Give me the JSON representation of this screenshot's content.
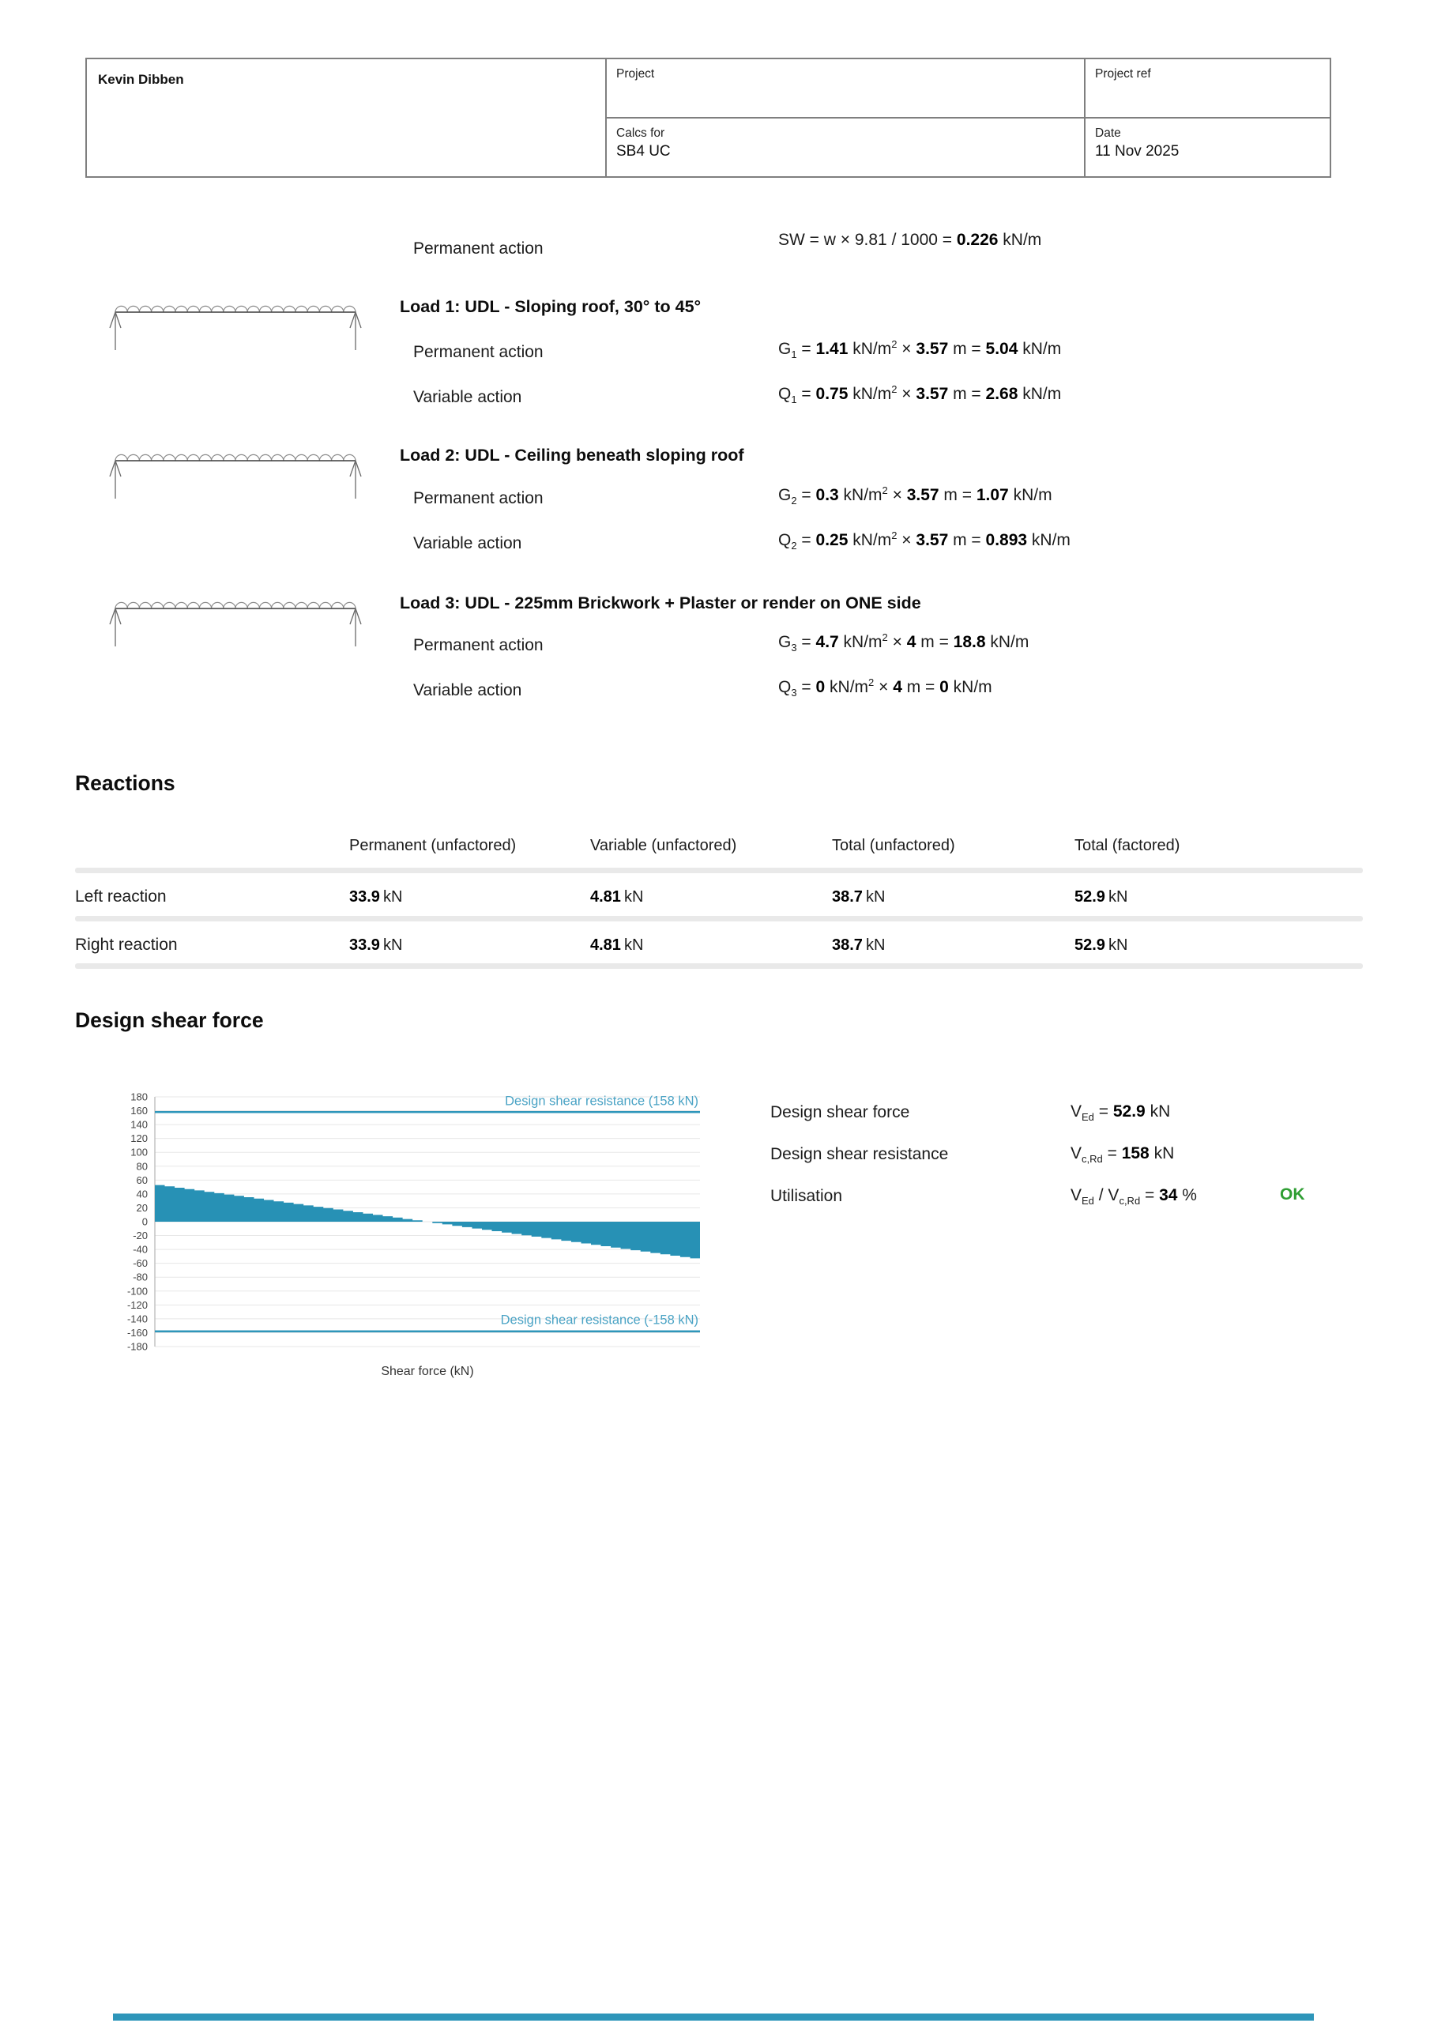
{
  "header": {
    "name": "Kevin Dibben",
    "project_label": "Project",
    "project_ref_label": "Project ref",
    "calcs_for_label": "Calcs for",
    "calcs_for_value": "SB4 UC",
    "date_label": "Date",
    "date_value": "11 Nov 2025"
  },
  "self_weight": {
    "label": "Permanent action",
    "formula": [
      {
        "t": "SW = w × 9.81 / 1000 = "
      },
      {
        "t": "0.226",
        "b": true
      },
      {
        "t": " kN/m"
      }
    ]
  },
  "loads": [
    {
      "title": "Load 1: UDL - Sloping roof, 30° to 45°",
      "diagram": "udl-beam-diagram",
      "permanent": {
        "label": "Permanent action",
        "formula": [
          {
            "t": "G"
          },
          {
            "t": "1",
            "s": "sub"
          },
          {
            "t": " = "
          },
          {
            "t": "1.41",
            "b": true
          },
          {
            "t": " kN/m"
          },
          {
            "t": "2",
            "s": "sup"
          },
          {
            "t": " × "
          },
          {
            "t": "3.57",
            "b": true
          },
          {
            "t": " m = "
          },
          {
            "t": "5.04",
            "b": true
          },
          {
            "t": " kN/m"
          }
        ]
      },
      "variable": {
        "label": "Variable action",
        "formula": [
          {
            "t": "Q"
          },
          {
            "t": "1",
            "s": "sub"
          },
          {
            "t": " = "
          },
          {
            "t": "0.75",
            "b": true
          },
          {
            "t": " kN/m"
          },
          {
            "t": "2",
            "s": "sup"
          },
          {
            "t": " × "
          },
          {
            "t": "3.57",
            "b": true
          },
          {
            "t": " m = "
          },
          {
            "t": "2.68",
            "b": true
          },
          {
            "t": " kN/m"
          }
        ]
      }
    },
    {
      "title": "Load 2: UDL - Ceiling beneath sloping roof",
      "diagram": "udl-beam-diagram",
      "permanent": {
        "label": "Permanent action",
        "formula": [
          {
            "t": "G"
          },
          {
            "t": "2",
            "s": "sub"
          },
          {
            "t": " = "
          },
          {
            "t": "0.3",
            "b": true
          },
          {
            "t": " kN/m"
          },
          {
            "t": "2",
            "s": "sup"
          },
          {
            "t": " × "
          },
          {
            "t": "3.57",
            "b": true
          },
          {
            "t": " m = "
          },
          {
            "t": "1.07",
            "b": true
          },
          {
            "t": " kN/m"
          }
        ]
      },
      "variable": {
        "label": "Variable action",
        "formula": [
          {
            "t": "Q"
          },
          {
            "t": "2",
            "s": "sub"
          },
          {
            "t": " = "
          },
          {
            "t": "0.25",
            "b": true
          },
          {
            "t": " kN/m"
          },
          {
            "t": "2",
            "s": "sup"
          },
          {
            "t": " × "
          },
          {
            "t": "3.57",
            "b": true
          },
          {
            "t": " m = "
          },
          {
            "t": "0.893",
            "b": true
          },
          {
            "t": " kN/m"
          }
        ]
      }
    },
    {
      "title": "Load 3: UDL - 225mm Brickwork + Plaster or render on ONE side",
      "diagram": "udl-beam-diagram",
      "permanent": {
        "label": "Permanent action",
        "formula": [
          {
            "t": "G"
          },
          {
            "t": "3",
            "s": "sub"
          },
          {
            "t": " = "
          },
          {
            "t": "4.7",
            "b": true
          },
          {
            "t": " kN/m"
          },
          {
            "t": "2",
            "s": "sup"
          },
          {
            "t": " × "
          },
          {
            "t": "4",
            "b": true
          },
          {
            "t": " m = "
          },
          {
            "t": "18.8",
            "b": true
          },
          {
            "t": " kN/m"
          }
        ]
      },
      "variable": {
        "label": "Variable action",
        "formula": [
          {
            "t": "Q"
          },
          {
            "t": "3",
            "s": "sub"
          },
          {
            "t": " = "
          },
          {
            "t": "0",
            "b": true
          },
          {
            "t": " kN/m"
          },
          {
            "t": "2",
            "s": "sup"
          },
          {
            "t": " × "
          },
          {
            "t": "4",
            "b": true
          },
          {
            "t": " m = "
          },
          {
            "t": "0",
            "b": true
          },
          {
            "t": " kN/m"
          }
        ]
      }
    }
  ],
  "reactions": {
    "heading": "Reactions",
    "columns": [
      "Permanent (unfactored)",
      "Variable (unfactored)",
      "Total (unfactored)",
      "Total (factored)"
    ],
    "rows": [
      {
        "label": "Left reaction",
        "values": [
          "33.9",
          "4.81",
          "38.7",
          "52.9"
        ],
        "unit": "kN"
      },
      {
        "label": "Right reaction",
        "values": [
          "33.9",
          "4.81",
          "38.7",
          "52.9"
        ],
        "unit": "kN"
      }
    ]
  },
  "shear": {
    "heading": "Design shear force",
    "rows": [
      {
        "label": "Design shear force",
        "formula": [
          {
            "t": "V"
          },
          {
            "t": "Ed",
            "s": "sub"
          },
          {
            "t": " = "
          },
          {
            "t": "52.9",
            "b": true
          },
          {
            "t": " kN"
          }
        ]
      },
      {
        "label": "Design shear resistance",
        "formula": [
          {
            "t": "V"
          },
          {
            "t": "c,Rd",
            "s": "sub"
          },
          {
            "t": " = "
          },
          {
            "t": "158",
            "b": true
          },
          {
            "t": " kN"
          }
        ]
      },
      {
        "label": "Utilisation",
        "formula": [
          {
            "t": "V"
          },
          {
            "t": "Ed",
            "s": "sub"
          },
          {
            "t": " / V"
          },
          {
            "t": "c,Rd",
            "s": "sub"
          },
          {
            "t": " = "
          },
          {
            "t": "34",
            "b": true
          },
          {
            "t": " %"
          }
        ],
        "status": "OK"
      }
    ],
    "status_color": "#2f9e33"
  },
  "chart_data": {
    "type": "area",
    "xlabel": "Shear force (kN)",
    "ylim": [
      -180,
      180
    ],
    "y_ticks": [
      180,
      160,
      140,
      120,
      100,
      80,
      60,
      40,
      20,
      0,
      -20,
      -40,
      -60,
      -80,
      -100,
      -120,
      -140,
      -160,
      -180
    ],
    "shear_start_kN": 52.9,
    "shear_end_kN": -52.9,
    "style": "stepped_fill",
    "steps": 55,
    "grid": true,
    "resistance_lines": [
      {
        "value": 158,
        "label": "Design shear resistance (158 kN)"
      },
      {
        "value": -158,
        "label": "Design shear resistance (-158 kN)"
      }
    ],
    "fill_color": "#2791b5",
    "line_color": "#2e96ba",
    "label_color": "#4aa3c5",
    "grid_color": "#e7e7e7",
    "axis_color": "#b5b5b5",
    "tick_color": "#444444"
  },
  "colors": {
    "teal_accent": "#2e96ba",
    "ok_green": "#2f9e33",
    "table_border": "#7f7f7f",
    "divider_gray": "#e9e9e9"
  }
}
